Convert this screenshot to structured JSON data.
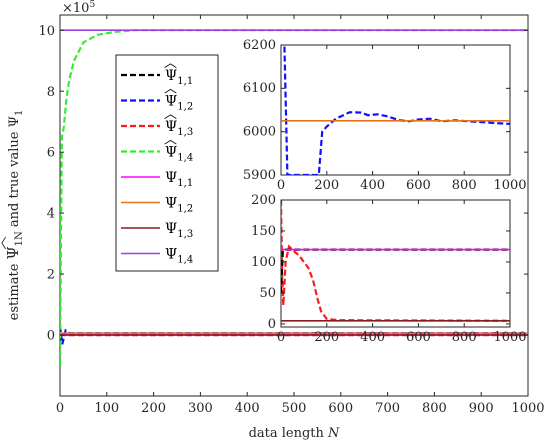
{
  "chart_data": [
    {
      "type": "line",
      "xlabel": "data length N",
      "ylabel": "estimate Ψ̂1N and true value Ψ1",
      "exponent_label": "×10^5",
      "xlim": [
        0,
        1000
      ],
      "ylim": [
        -2,
        10.5
      ],
      "x_ticks": [
        0,
        100,
        200,
        300,
        400,
        500,
        600,
        700,
        800,
        900,
        1000
      ],
      "y_ticks": [
        0,
        2,
        4,
        6,
        8,
        10
      ],
      "grid": false,
      "legend_position": "upper-left-inside",
      "series": [
        {
          "name": "Ψ̂1,1",
          "label_sub": "1,1",
          "hat": true,
          "color": "#000000",
          "dash": "6,3",
          "width": 2.2,
          "points": [
            [
              0,
              0.02
            ],
            [
              10,
              0.0
            ],
            [
              20,
              0.0012
            ],
            [
              1000,
              0.0012
            ]
          ]
        },
        {
          "name": "Ψ̂1,2",
          "label_sub": "1,2",
          "hat": true,
          "color": "#1010ff",
          "dash": "6,3",
          "width": 2.2,
          "points": [
            [
              0,
              0.3
            ],
            [
              5,
              -0.3
            ],
            [
              12,
              0.15
            ],
            [
              20,
              0.06
            ],
            [
              40,
              0.06
            ],
            [
              1000,
              0.06
            ]
          ]
        },
        {
          "name": "Ψ̂1,3",
          "label_sub": "1,3",
          "hat": true,
          "color": "#ff1a1a",
          "dash": "6,3",
          "width": 2.2,
          "points": [
            [
              0,
              0.0
            ],
            [
              5,
              0.002
            ],
            [
              20,
              0.0012
            ],
            [
              1000,
              0.0
            ]
          ]
        },
        {
          "name": "Ψ̂1,4",
          "label_sub": "1,4",
          "hat": true,
          "color": "#33ee33",
          "dash": "6,3",
          "width": 2.2,
          "points": [
            [
              0,
              -1.0
            ],
            [
              2,
              3.0
            ],
            [
              4,
              6.5
            ],
            [
              8,
              6.8
            ],
            [
              14,
              7.8
            ],
            [
              20,
              8.4
            ],
            [
              30,
              9.0
            ],
            [
              50,
              9.6
            ],
            [
              80,
              9.85
            ],
            [
              120,
              9.95
            ],
            [
              160,
              10.0
            ],
            [
              1000,
              10.0
            ]
          ]
        },
        {
          "name": "Ψ1,1",
          "label_sub": "1,1",
          "hat": false,
          "color": "#ff00ff",
          "dash": "",
          "width": 1.6,
          "points": [
            [
              0,
              0.0012
            ],
            [
              1000,
              0.0012
            ]
          ]
        },
        {
          "name": "Ψ1,2",
          "label_sub": "1,2",
          "hat": false,
          "color": "#e8731a",
          "dash": "",
          "width": 1.6,
          "points": [
            [
              0,
              0.0603
            ],
            [
              1000,
              0.0603
            ]
          ]
        },
        {
          "name": "Ψ1,3",
          "label_sub": "1,3",
          "hat": false,
          "color": "#8b1a1a",
          "dash": "",
          "width": 1.6,
          "points": [
            [
              0,
              0.0
            ],
            [
              1000,
              0.0
            ]
          ]
        },
        {
          "name": "Ψ1,4",
          "label_sub": "1,4",
          "hat": false,
          "color": "#a040e0",
          "dash": "",
          "width": 1.6,
          "points": [
            [
              0,
              10.0
            ],
            [
              1000,
              10.0
            ]
          ]
        }
      ]
    },
    {
      "type": "line",
      "inset": "top",
      "xlim": [
        0,
        1000
      ],
      "ylim": [
        5900,
        6200
      ],
      "x_ticks": [
        0,
        200,
        400,
        600,
        800,
        1000
      ],
      "y_ticks": [
        5900,
        6000,
        6100,
        6200
      ],
      "series": [
        {
          "name": "Ψ̂1,2",
          "color": "#1010ff",
          "dash": "6,3",
          "width": 2.2,
          "points": [
            [
              0,
              6300
            ],
            [
              15,
              6200
            ],
            [
              28,
              5900
            ],
            [
              165,
              5900
            ],
            [
              180,
              6000
            ],
            [
              200,
              6012
            ],
            [
              240,
              6030
            ],
            [
              300,
              6045
            ],
            [
              350,
              6044
            ],
            [
              380,
              6038
            ],
            [
              420,
              6040
            ],
            [
              460,
              6036
            ],
            [
              520,
              6026
            ],
            [
              560,
              6024
            ],
            [
              600,
              6028
            ],
            [
              650,
              6030
            ],
            [
              700,
              6024
            ],
            [
              760,
              6026
            ],
            [
              820,
              6024
            ],
            [
              880,
              6022
            ],
            [
              930,
              6020
            ],
            [
              1000,
              6018
            ]
          ]
        },
        {
          "name": "Ψ1,2",
          "color": "#e8731a",
          "dash": "",
          "width": 1.6,
          "points": [
            [
              0,
              6025
            ],
            [
              1000,
              6025
            ]
          ]
        }
      ]
    },
    {
      "type": "line",
      "inset": "bottom",
      "xlim": [
        0,
        1000
      ],
      "ylim": [
        -5,
        200
      ],
      "x_ticks": [
        0,
        200,
        400,
        600,
        800,
        1000
      ],
      "y_ticks": [
        0,
        50,
        100,
        150,
        200
      ],
      "series": [
        {
          "name": "Ψ̂1,3",
          "color": "#ff1a1a",
          "dash": "6,3",
          "width": 2.2,
          "points": [
            [
              0,
              200
            ],
            [
              5,
              80
            ],
            [
              10,
              30
            ],
            [
              20,
              100
            ],
            [
              35,
              125
            ],
            [
              55,
              118
            ],
            [
              80,
              110
            ],
            [
              100,
              100
            ],
            [
              120,
              90
            ],
            [
              140,
              70
            ],
            [
              160,
              40
            ],
            [
              175,
              20
            ],
            [
              200,
              8
            ],
            [
              250,
              6
            ],
            [
              1000,
              5
            ]
          ]
        },
        {
          "name": "Ψ̂1,1",
          "color": "#000000",
          "dash": "6,3",
          "width": 2.2,
          "points": [
            [
              0,
              50
            ],
            [
              8,
              118
            ],
            [
              20,
              120
            ],
            [
              1000,
              120
            ]
          ]
        },
        {
          "name": "Ψ1,1",
          "color": "#ff00ff",
          "dash": "",
          "width": 1.6,
          "points": [
            [
              0,
              120
            ],
            [
              1000,
              120
            ]
          ]
        },
        {
          "name": "Ψ1,3",
          "color": "#8b1a1a",
          "dash": "",
          "width": 1.6,
          "points": [
            [
              0,
              5
            ],
            [
              1000,
              5
            ]
          ]
        }
      ]
    }
  ]
}
